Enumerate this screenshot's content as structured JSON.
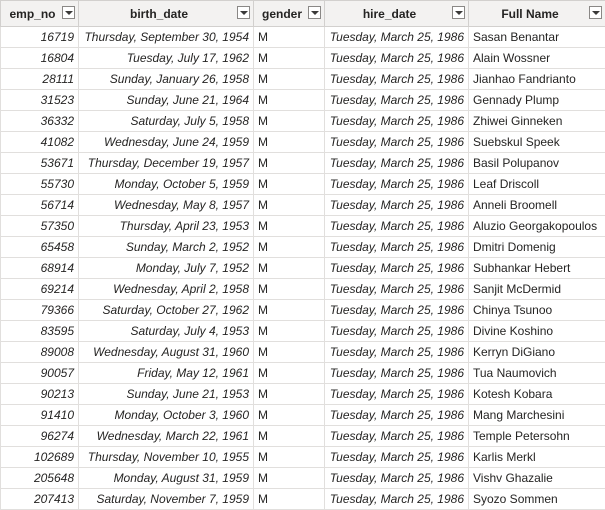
{
  "columns": [
    {
      "label": "emp_no"
    },
    {
      "label": "birth_date"
    },
    {
      "label": "gender"
    },
    {
      "label": "hire_date"
    },
    {
      "label": "Full Name"
    }
  ],
  "rows": [
    [
      "16719",
      "Thursday, September 30, 1954",
      "M",
      "Tuesday, March 25, 1986",
      "Sasan Benantar"
    ],
    [
      "16804",
      "Tuesday, July 17, 1962",
      "M",
      "Tuesday, March 25, 1986",
      "Alain Wossner"
    ],
    [
      "28111",
      "Sunday, January 26, 1958",
      "M",
      "Tuesday, March 25, 1986",
      "Jianhao Fandrianto"
    ],
    [
      "31523",
      "Sunday, June 21, 1964",
      "M",
      "Tuesday, March 25, 1986",
      "Gennady Plump"
    ],
    [
      "36332",
      "Saturday, July 5, 1958",
      "M",
      "Tuesday, March 25, 1986",
      "Zhiwei Ginneken"
    ],
    [
      "41082",
      "Wednesday, June 24, 1959",
      "M",
      "Tuesday, March 25, 1986",
      "Suebskul Speek"
    ],
    [
      "53671",
      "Thursday, December 19, 1957",
      "M",
      "Tuesday, March 25, 1986",
      "Basil Polupanov"
    ],
    [
      "55730",
      "Monday, October 5, 1959",
      "M",
      "Tuesday, March 25, 1986",
      "Leaf Driscoll"
    ],
    [
      "56714",
      "Wednesday, May 8, 1957",
      "M",
      "Tuesday, March 25, 1986",
      "Anneli Broomell"
    ],
    [
      "57350",
      "Thursday, April 23, 1953",
      "M",
      "Tuesday, March 25, 1986",
      "Aluzio Georgakopoulos"
    ],
    [
      "65458",
      "Sunday, March 2, 1952",
      "M",
      "Tuesday, March 25, 1986",
      "Dmitri Domenig"
    ],
    [
      "68914",
      "Monday, July 7, 1952",
      "M",
      "Tuesday, March 25, 1986",
      "Subhankar Hebert"
    ],
    [
      "69214",
      "Wednesday, April 2, 1958",
      "M",
      "Tuesday, March 25, 1986",
      "Sanjit McDermid"
    ],
    [
      "79366",
      "Saturday, October 27, 1962",
      "M",
      "Tuesday, March 25, 1986",
      "Chinya Tsunoo"
    ],
    [
      "83595",
      "Saturday, July 4, 1953",
      "M",
      "Tuesday, March 25, 1986",
      "Divine Koshino"
    ],
    [
      "89008",
      "Wednesday, August 31, 1960",
      "M",
      "Tuesday, March 25, 1986",
      "Kerryn DiGiano"
    ],
    [
      "90057",
      "Friday, May 12, 1961",
      "M",
      "Tuesday, March 25, 1986",
      "Tua Naumovich"
    ],
    [
      "90213",
      "Sunday, June 21, 1953",
      "M",
      "Tuesday, March 25, 1986",
      "Kotesh Kobara"
    ],
    [
      "91410",
      "Monday, October 3, 1960",
      "M",
      "Tuesday, March 25, 1986",
      "Mang Marchesini"
    ],
    [
      "96274",
      "Wednesday, March 22, 1961",
      "M",
      "Tuesday, March 25, 1986",
      "Temple Petersohn"
    ],
    [
      "102689",
      "Thursday, November 10, 1955",
      "M",
      "Tuesday, March 25, 1986",
      "Karlis Merkl"
    ],
    [
      "205648",
      "Monday, August 31, 1959",
      "M",
      "Tuesday, March 25, 1986",
      "Vishv Ghazalie"
    ],
    [
      "207413",
      "Saturday, November 7, 1959",
      "M",
      "Tuesday, March 25, 1986",
      "Syozo Sommen"
    ]
  ],
  "icons": {
    "filter": "dropdown-filter-icon"
  }
}
